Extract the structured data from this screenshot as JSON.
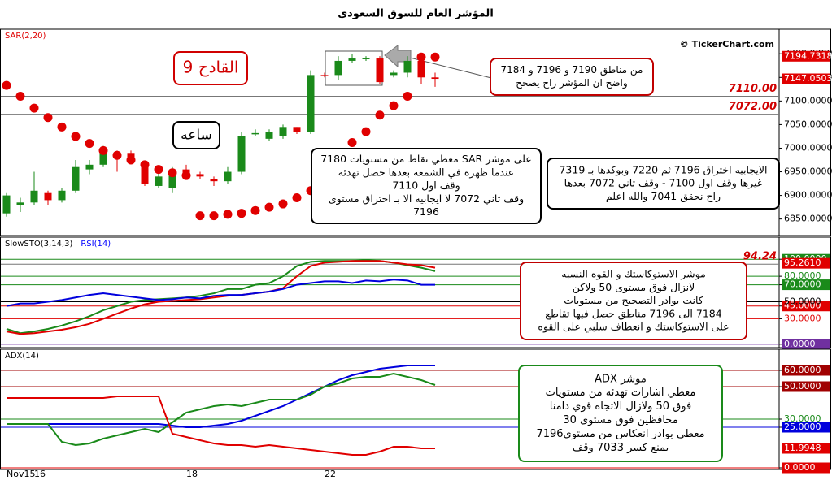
{
  "chart_data": [
    {
      "type": "candlestick",
      "title": "المؤشر العام للسوق السعودي",
      "source": "© TickerChart.com",
      "ylim": [
        6815,
        7252
      ],
      "grid": false,
      "yticks": [
        {
          "value": 6850,
          "label": "6850.0000",
          "color": "#000"
        },
        {
          "value": 6900,
          "label": "6900.0000",
          "color": "#000"
        },
        {
          "value": 6950,
          "label": "6950.0000",
          "color": "#000"
        },
        {
          "value": 7000,
          "label": "7000.0000",
          "color": "#000"
        },
        {
          "value": 7050,
          "label": "7050.0000",
          "color": "#000"
        },
        {
          "value": 7100,
          "label": "7100.0000",
          "color": "#000"
        },
        {
          "value": 7150,
          "label": "7150.0000",
          "color": "#000"
        },
        {
          "value": 7200,
          "label": "7200.0000",
          "color": "#000"
        }
      ],
      "up_color": "#1a8a1a",
      "down_color": "#e00000",
      "ohlc": {
        "open": [
          6862,
          6880,
          6885,
          6905,
          6890,
          6910,
          6955,
          6965,
          6990,
          6990,
          6965,
          6920,
          6915,
          6955,
          6945,
          6935,
          6930,
          6950,
          7030,
          7020,
          7025,
          7045,
          7035,
          7155,
          7155,
          7185,
          7190,
          7190,
          7155,
          7160,
          7185,
          7150
        ],
        "high": [
          6905,
          6895,
          6950,
          6910,
          6915,
          6975,
          6975,
          7005,
          6995,
          6995,
          6970,
          6955,
          6960,
          6965,
          6950,
          6940,
          6960,
          7035,
          7040,
          7040,
          7050,
          7045,
          7165,
          7160,
          7195,
          7200,
          7195,
          7195,
          7165,
          7195,
          7185,
          7160
        ],
        "low": [
          6855,
          6865,
          6880,
          6880,
          6885,
          6905,
          6945,
          6960,
          6950,
          6970,
          6920,
          6915,
          6905,
          6935,
          6935,
          6920,
          6925,
          6945,
          7025,
          7015,
          7020,
          7030,
          7030,
          7150,
          7145,
          7180,
          7185,
          7135,
          7150,
          7150,
          7135,
          7130
        ],
        "close": [
          6900,
          6885,
          6910,
          6890,
          6910,
          6960,
          6965,
          6990,
          6980,
          6975,
          6925,
          6940,
          6945,
          6940,
          6940,
          6930,
          6950,
          7025,
          7032,
          7035,
          7045,
          7035,
          7155,
          7154,
          7185,
          7190,
          7191,
          7140,
          7160,
          7185,
          7150,
          7147
        ]
      },
      "series": [
        {
          "name": "SAR(2,20)",
          "label_color": "#e00000",
          "lines": [
            {
              "style": "dots",
              "color": "#e00000",
              "values": [
                7133,
                7110,
                7085,
                7065,
                7045,
                7025,
                7010,
                6995,
                6985,
                6975,
                6965,
                6955,
                6948,
                6942,
                6857,
                6857,
                6860,
                6862,
                6868,
                6875,
                6882,
                6895,
                6910,
                6940,
                6970,
                7012,
                7035,
                7070,
                7090,
                7110,
                7193,
                7193
              ]
            }
          ]
        }
      ],
      "levels": [
        {
          "value": 7110,
          "label": "7110.00"
        },
        {
          "value": 7072,
          "label": "7072.00"
        }
      ],
      "markers": [
        7194.7318,
        7147.0503
      ],
      "marker_color": "#e00000",
      "annotations": [
        {
          "lines": [
            "القادح 9"
          ],
          "color": "#d00000",
          "text_color": "#d00000"
        },
        {
          "lines": [
            "ساعه"
          ],
          "color": "#000000"
        },
        {
          "lines": [
            "من مناطق 7190 و 7196 و 7184",
            "واضح ان المؤشر راح يصحح"
          ],
          "color": "#c00000"
        },
        {
          "lines": [
            "على موشر SAR معطي نقاط من مستويات 7180",
            "عندما ظهره في الشمعه بعدها حصل تهدئه",
            "وقف اول 7110",
            "وقف ثاني 7072 لا ايجابيه الا بـ اختراق مستوى",
            "7196"
          ],
          "color": "#000000"
        },
        {
          "lines": [
            "الايجابيه اختراق 7196 ثم 7220 وبوكدها بـ 7319",
            "غيرها وقف اول 7100 - وقف ثاني 7072 بعدها",
            "راح نحقق 7041 والله اعلم"
          ],
          "color": "#000000"
        }
      ]
    },
    {
      "type": "line",
      "ylim": [
        -4,
        126
      ],
      "grid": true,
      "yticks": [
        {
          "value": 0,
          "label": "0.0000",
          "color": "#7030a0",
          "boxed": true
        },
        {
          "value": 30,
          "label": "30.0000",
          "color": "#e00000"
        },
        {
          "value": 45,
          "label": "45.0000",
          "color": "#e00000",
          "boxed": true
        },
        {
          "value": 50,
          "label": "50.0000",
          "color": "#000"
        },
        {
          "value": 70,
          "label": "70.0000",
          "color": "#1a8a1a",
          "boxed": true
        },
        {
          "value": 80,
          "label": "80.0000",
          "color": "#1a8a1a"
        },
        {
          "value": 100,
          "label": "100.0000",
          "color": "#1a8a1a",
          "boxed": true
        }
      ],
      "series": [
        {
          "name": "SlowSTO(3,14,3)",
          "label_color": "#000000",
          "lines": [
            {
              "color": "#1a8a1a",
              "values": [
                18,
                13,
                15,
                18,
                22,
                27,
                33,
                40,
                45,
                50,
                52,
                53,
                54,
                55,
                57,
                60,
                65,
                65,
                70,
                72,
                80,
                92,
                97,
                98,
                98,
                98,
                99,
                98,
                96,
                93,
                90,
                86
              ]
            },
            {
              "color": "#e00000",
              "values": [
                15,
                12,
                13,
                15,
                17,
                20,
                24,
                30,
                36,
                42,
                47,
                50,
                51,
                52,
                53,
                55,
                57,
                58,
                60,
                62,
                66,
                80,
                92,
                96,
                97,
                98,
                98,
                98,
                96,
                94,
                93,
                90
              ]
            }
          ]
        },
        {
          "name": "RSI(14)",
          "label_color": "#0000ff",
          "lines": [
            {
              "color": "#0000dd",
              "values": [
                45,
                48,
                48,
                50,
                52,
                55,
                58,
                60,
                58,
                56,
                54,
                52,
                53,
                55,
                54,
                57,
                58,
                58,
                60,
                62,
                65,
                70,
                72,
                74,
                74,
                72,
                75,
                74,
                76,
                75,
                70,
                70
              ]
            }
          ]
        }
      ],
      "levels": [
        94.24
      ],
      "markers": [
        {
          "value": 95.261,
          "label": "95.2610"
        }
      ],
      "marker_color": "#e00000",
      "annotations": [
        {
          "lines": [
            "موشر الاستوكاستك و القوه النسبه",
            "لانزال فوق مستوى 50 ولاكن",
            "كانت بوادر التصحيح من مستويات",
            "7184 الى 7196 مناطق حصل فيها تقاطع",
            "على الاستوكاستك و انعطاف سلبي على القوه"
          ],
          "color": "#c00000"
        }
      ]
    },
    {
      "type": "line",
      "ylim": [
        -1,
        73
      ],
      "grid": true,
      "yticks": [
        {
          "value": 0,
          "label": "0.0000",
          "color": "#e00000",
          "boxed": true
        },
        {
          "value": 25,
          "label": "25.0000",
          "color": "#0000dd",
          "boxed": true
        },
        {
          "value": 30,
          "label": "30.0000",
          "color": "#1a8a1a"
        },
        {
          "value": 50,
          "label": "50.0000",
          "color": "#a00000",
          "boxed": true
        },
        {
          "value": 60,
          "label": "60.0000",
          "color": "#a00000",
          "boxed": true
        }
      ],
      "categories": [
        "Nov15",
        null,
        "16",
        null,
        null,
        null,
        null,
        null,
        null,
        null,
        null,
        null,
        null,
        "18",
        null,
        null,
        null,
        null,
        null,
        null,
        null,
        null,
        null,
        "22",
        null,
        null,
        null,
        null,
        null,
        null,
        null,
        null
      ],
      "series": [
        {
          "name": "ADX(14)",
          "label_color": "#000000",
          "lines": [
            {
              "color": "#0000dd",
              "values": [
                27,
                27,
                27,
                27,
                27,
                27,
                27,
                27,
                27,
                27,
                27,
                27,
                26,
                25,
                25,
                26,
                27,
                29,
                32,
                35,
                38,
                42,
                46,
                50,
                54,
                57,
                59,
                61,
                62,
                63,
                63,
                63
              ]
            },
            {
              "color": "#1a8a1a",
              "values": [
                27,
                27,
                27,
                27,
                16,
                14,
                15,
                18,
                20,
                22,
                24,
                22,
                28,
                34,
                36,
                38,
                39,
                38,
                40,
                42,
                42,
                42,
                45,
                50,
                52,
                55,
                56,
                56,
                58,
                56,
                54,
                51
              ]
            },
            {
              "color": "#e00000",
              "values": [
                43,
                43,
                43,
                43,
                43,
                43,
                43,
                43,
                44,
                44,
                44,
                44,
                21,
                19,
                17,
                15,
                14,
                14,
                13,
                14,
                13,
                12,
                11,
                10,
                9,
                8,
                8,
                10,
                13,
                13,
                12,
                12
              ]
            }
          ]
        }
      ],
      "markers": [
        11.9948
      ],
      "marker_color": "#e00000",
      "annotations": [
        {
          "lines": [
            "موشر ADX",
            "معطي اشارات تهدئه من مستويات",
            "فوق 50 ولازال الاتجاه قوي دامنا",
            "محافظين فوق مستوى 30",
            "معطي بوادر انعكاس من مستوى7196",
            "يمنع كسر 7033 وقف"
          ],
          "color": "#1a8a1a"
        }
      ]
    }
  ]
}
